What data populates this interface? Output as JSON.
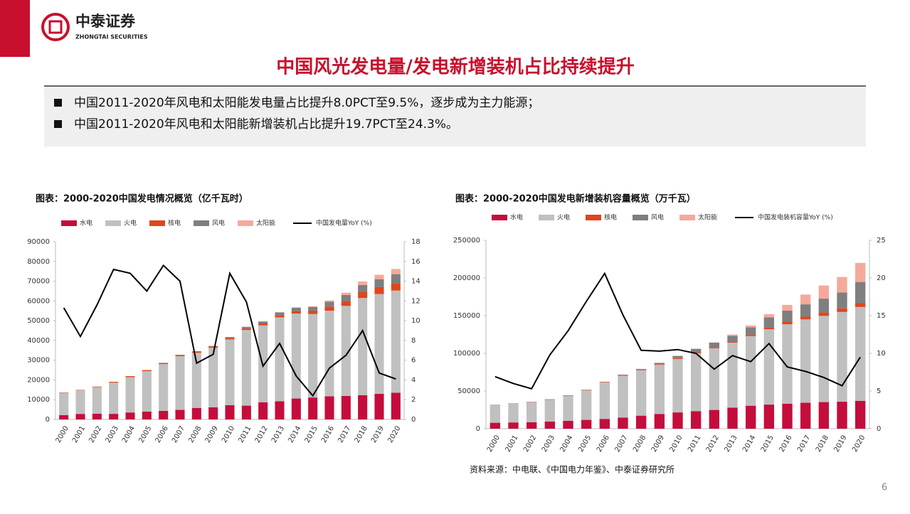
{
  "header": {
    "company": "中泰证券",
    "company_en": "ZHONGTAI SECURITIES"
  },
  "title": "中国风光发电量/发电新增装机占比持续提升",
  "bullets": [
    "中国2011-2020年风电和太阳能发电量占比提升8.0PCT至9.5%，逐步成为主力能源；",
    "中国2011-2020年风电和太阳能新增装机占比提升19.7PCT至24.3%。"
  ],
  "chart_data": [
    {
      "type": "combo",
      "title": "图表：2000-2020中国发电情况概览（亿千瓦时）",
      "stacked": true,
      "grid": false,
      "categories": [
        "2000",
        "2001",
        "2002",
        "2003",
        "2004",
        "2005",
        "2006",
        "2007",
        "2008",
        "2009",
        "2010",
        "2011",
        "2012",
        "2013",
        "2014",
        "2015",
        "2016",
        "2017",
        "2018",
        "2019",
        "2020"
      ],
      "ylim": [
        0,
        90000
      ],
      "yticks": [
        0,
        10000,
        20000,
        30000,
        40000,
        50000,
        60000,
        70000,
        80000,
        90000
      ],
      "y2lim": [
        0,
        18
      ],
      "y2ticks": [
        0,
        2,
        4,
        6,
        8,
        10,
        12,
        14,
        16,
        18
      ],
      "series": [
        {
          "name": "水电",
          "type": "bar",
          "color": "#c40d3c",
          "values": [
            2200,
            2800,
            2880,
            2840,
            3540,
            3970,
            4360,
            4850,
            5850,
            6160,
            7220,
            6990,
            8720,
            9200,
            10600,
            11100,
            11750,
            11900,
            12300,
            13000,
            13550
          ]
        },
        {
          "name": "火电",
          "type": "bar",
          "color": "#c0c0c0",
          "values": [
            11300,
            12000,
            13500,
            15800,
            17900,
            20500,
            23700,
            27200,
            27900,
            30100,
            33300,
            38300,
            38900,
            42500,
            43000,
            42300,
            43300,
            45600,
            49200,
            50500,
            51700
          ]
        },
        {
          "name": "核电",
          "type": "bar",
          "color": "#e0461b",
          "values": [
            170,
            175,
            250,
            430,
            500,
            530,
            550,
            620,
            680,
            700,
            740,
            870,
            980,
            1120,
            1330,
            1710,
            2130,
            2480,
            2940,
            3480,
            3660
          ]
        },
        {
          "name": "风电",
          "type": "bar",
          "color": "#7f7f7f",
          "values": [
            6,
            7,
            7,
            8,
            10,
            16,
            28,
            57,
            131,
            276,
            494,
            741,
            1030,
            1380,
            1600,
            1860,
            2410,
            3030,
            3660,
            4060,
            4670
          ]
        },
        {
          "name": "太阳能",
          "type": "bar",
          "color": "#f5a99b",
          "values": [
            0,
            0,
            0,
            0,
            0,
            0,
            0,
            0,
            0,
            0,
            0,
            6,
            36,
            84,
            235,
            395,
            665,
            1180,
            1770,
            2240,
            2610
          ]
        },
        {
          "name": "中国发电量YoY (%)",
          "type": "line",
          "axis": "y2",
          "color": "#000000",
          "values": [
            11.3,
            8.4,
            11.6,
            15.2,
            14.8,
            13.0,
            15.6,
            14.0,
            5.7,
            6.6,
            14.8,
            11.9,
            5.4,
            7.7,
            4.4,
            2.4,
            5.2,
            6.5,
            9.0,
            4.7,
            4.1
          ]
        }
      ]
    },
    {
      "type": "combo",
      "title": "图表：2000-2020中国发电新增装机容量概览（万千瓦）",
      "stacked": true,
      "grid": false,
      "categories": [
        "2000",
        "2001",
        "2002",
        "2003",
        "2004",
        "2005",
        "2006",
        "2007",
        "2008",
        "2009",
        "2010",
        "2011",
        "2012",
        "2013",
        "2014",
        "2015",
        "2016",
        "2017",
        "2018",
        "2019",
        "2020"
      ],
      "ylim": [
        0,
        250000
      ],
      "yticks": [
        0,
        50000,
        100000,
        150000,
        200000,
        250000
      ],
      "y2lim": [
        0,
        25
      ],
      "y2ticks": [
        0,
        5,
        10,
        15,
        20,
        25
      ],
      "series": [
        {
          "name": "水电",
          "type": "bar",
          "color": "#c40d3c",
          "values": [
            7900,
            8300,
            8600,
            9500,
            10500,
            11700,
            13000,
            14800,
            17300,
            19600,
            21600,
            23300,
            24900,
            28000,
            30500,
            32000,
            33200,
            34400,
            35300,
            35800,
            37000
          ]
        },
        {
          "name": "火电",
          "type": "bar",
          "color": "#c0c0c0",
          "values": [
            23800,
            25300,
            26600,
            28900,
            32900,
            39100,
            48400,
            55600,
            60300,
            65100,
            70900,
            76800,
            81900,
            86200,
            92400,
            100000,
            105400,
            110600,
            114400,
            119100,
            124500
          ]
        },
        {
          "name": "核电",
          "type": "bar",
          "color": "#e0461b",
          "values": [
            210,
            210,
            450,
            620,
            700,
            700,
            700,
            900,
            900,
            900,
            1100,
            1250,
            1260,
            1470,
            2000,
            2700,
            3360,
            3600,
            4470,
            4870,
            4990
          ]
        },
        {
          "name": "风电",
          "type": "bar",
          "color": "#7f7f7f",
          "values": [
            34,
            38,
            45,
            57,
            76,
            106,
            207,
            420,
            839,
            1760,
            2960,
            4620,
            6140,
            7650,
            9660,
            13100,
            14700,
            16400,
            18400,
            21000,
            28200
          ]
        },
        {
          "name": "太阳能",
          "type": "bar",
          "color": "#f5a99b",
          "values": [
            0,
            0,
            0,
            0,
            0,
            0,
            0,
            0,
            0,
            0,
            0,
            212,
            341,
            1590,
            2490,
            4200,
            7630,
            13000,
            17400,
            20500,
            25300
          ]
        },
        {
          "name": "中国发电装机容量YoY (%)",
          "type": "line",
          "axis": "y2",
          "color": "#000000",
          "values": [
            6.9,
            6.0,
            5.3,
            9.8,
            13.0,
            16.9,
            20.6,
            15.1,
            10.4,
            10.3,
            10.5,
            10.0,
            7.9,
            9.7,
            8.9,
            11.3,
            8.2,
            7.6,
            6.8,
            5.7,
            9.5
          ]
        }
      ]
    }
  ],
  "source": "资料来源：中电联、《中国电力年鉴》、中泰证券研究所",
  "page_number": 6
}
